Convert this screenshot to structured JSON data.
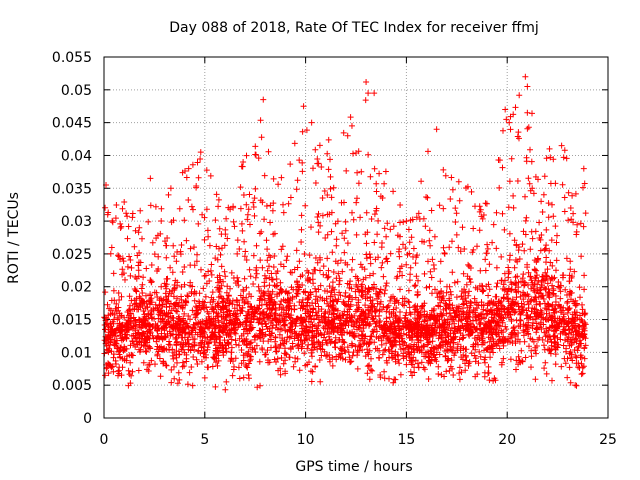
{
  "chart_data": {
    "type": "scatter",
    "title": "Day 088 of 2018, Rate Of TEC Index for receiver ffmj",
    "xlabel": "GPS time / hours",
    "ylabel": "ROTI / TECUs",
    "xlim": [
      0,
      25
    ],
    "ylim": [
      0,
      0.055
    ],
    "xticks": [
      0,
      5,
      10,
      15,
      20,
      25
    ],
    "xtick_labels": [
      "0",
      "5",
      "10",
      "15",
      "20",
      "25"
    ],
    "yticks": [
      0,
      0.005,
      0.01,
      0.015,
      0.02,
      0.025,
      0.03,
      0.035,
      0.04,
      0.045,
      0.05,
      0.055
    ],
    "ytick_labels": [
      "0",
      "0.005",
      "0.01",
      "0.015",
      "0.02",
      "0.025",
      "0.03",
      "0.035",
      "0.04",
      "0.045",
      "0.05",
      "0.055"
    ],
    "grid": true,
    "marker": "+",
    "marker_color": "#ff0000",
    "data_x_range": [
      0,
      23.9
    ],
    "envelope": {
      "x": [
        0,
        1,
        2,
        3,
        4,
        5,
        6,
        7,
        8,
        9,
        10,
        11,
        12,
        13,
        14,
        15,
        16,
        17,
        18,
        19,
        20,
        21,
        22,
        23,
        23.9
      ],
      "y_max": [
        0.035,
        0.033,
        0.032,
        0.036,
        0.038,
        0.04,
        0.031,
        0.04,
        0.048,
        0.038,
        0.047,
        0.042,
        0.045,
        0.051,
        0.038,
        0.03,
        0.044,
        0.037,
        0.036,
        0.033,
        0.048,
        0.052,
        0.04,
        0.041,
        0.038
      ],
      "y_typical": [
        0.012,
        0.013,
        0.014,
        0.014,
        0.013,
        0.013,
        0.013,
        0.014,
        0.016,
        0.014,
        0.014,
        0.014,
        0.014,
        0.015,
        0.013,
        0.012,
        0.013,
        0.013,
        0.014,
        0.013,
        0.016,
        0.016,
        0.015,
        0.014,
        0.012
      ],
      "y_min": [
        0.005,
        0.004,
        0.005,
        0.005,
        0.004,
        0.004,
        0.004,
        0.004,
        0.005,
        0.005,
        0.005,
        0.004,
        0.005,
        0.004,
        0.004,
        0.005,
        0.005,
        0.004,
        0.004,
        0.004,
        0.005,
        0.005,
        0.004,
        0.004,
        0.004
      ]
    },
    "highlights": [
      {
        "x": 7.9,
        "y": 0.0485
      },
      {
        "x": 9.9,
        "y": 0.0475
      },
      {
        "x": 10.3,
        "y": 0.045
      },
      {
        "x": 12.3,
        "y": 0.0445
      },
      {
        "x": 13.0,
        "y": 0.0512
      },
      {
        "x": 13.1,
        "y": 0.0495
      },
      {
        "x": 13.4,
        "y": 0.0495
      },
      {
        "x": 16.5,
        "y": 0.044
      },
      {
        "x": 19.9,
        "y": 0.047
      },
      {
        "x": 20.1,
        "y": 0.045
      },
      {
        "x": 20.9,
        "y": 0.052
      },
      {
        "x": 21.0,
        "y": 0.0505
      },
      {
        "x": 21.0,
        "y": 0.0465
      },
      {
        "x": 22.1,
        "y": 0.041
      },
      {
        "x": 22.7,
        "y": 0.0415
      },
      {
        "x": 0.1,
        "y": 0.0355
      },
      {
        "x": 4.8,
        "y": 0.0405
      },
      {
        "x": 4.2,
        "y": 0.038
      },
      {
        "x": 6.9,
        "y": 0.039
      },
      {
        "x": 2.3,
        "y": 0.0365
      },
      {
        "x": 15.0,
        "y": 0.03
      },
      {
        "x": 17.6,
        "y": 0.036
      },
      {
        "x": 23.8,
        "y": 0.038
      }
    ]
  }
}
